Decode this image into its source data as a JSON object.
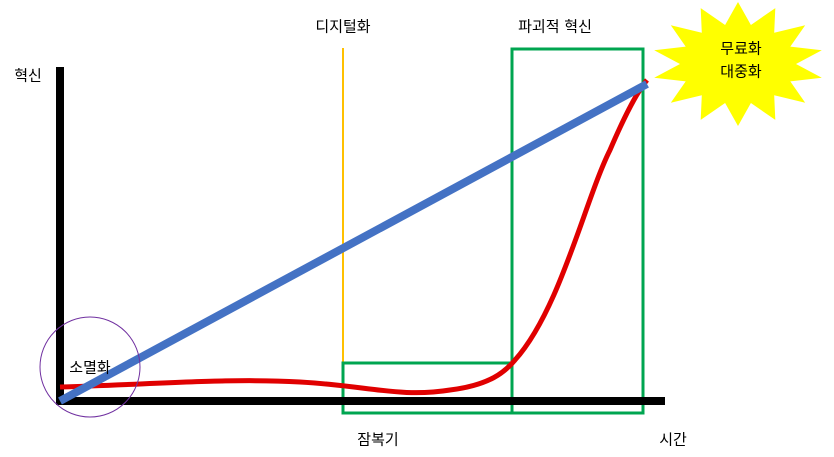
{
  "axes": {
    "y_label": "혁신",
    "x_label": "시간"
  },
  "annotations": {
    "digitalization": "디지털화",
    "disruptive_innovation": "파괴적 혁신",
    "latency": "잠복기",
    "extinction": "소멸화",
    "burst": [
      "무료화",
      "대중화"
    ]
  }
}
